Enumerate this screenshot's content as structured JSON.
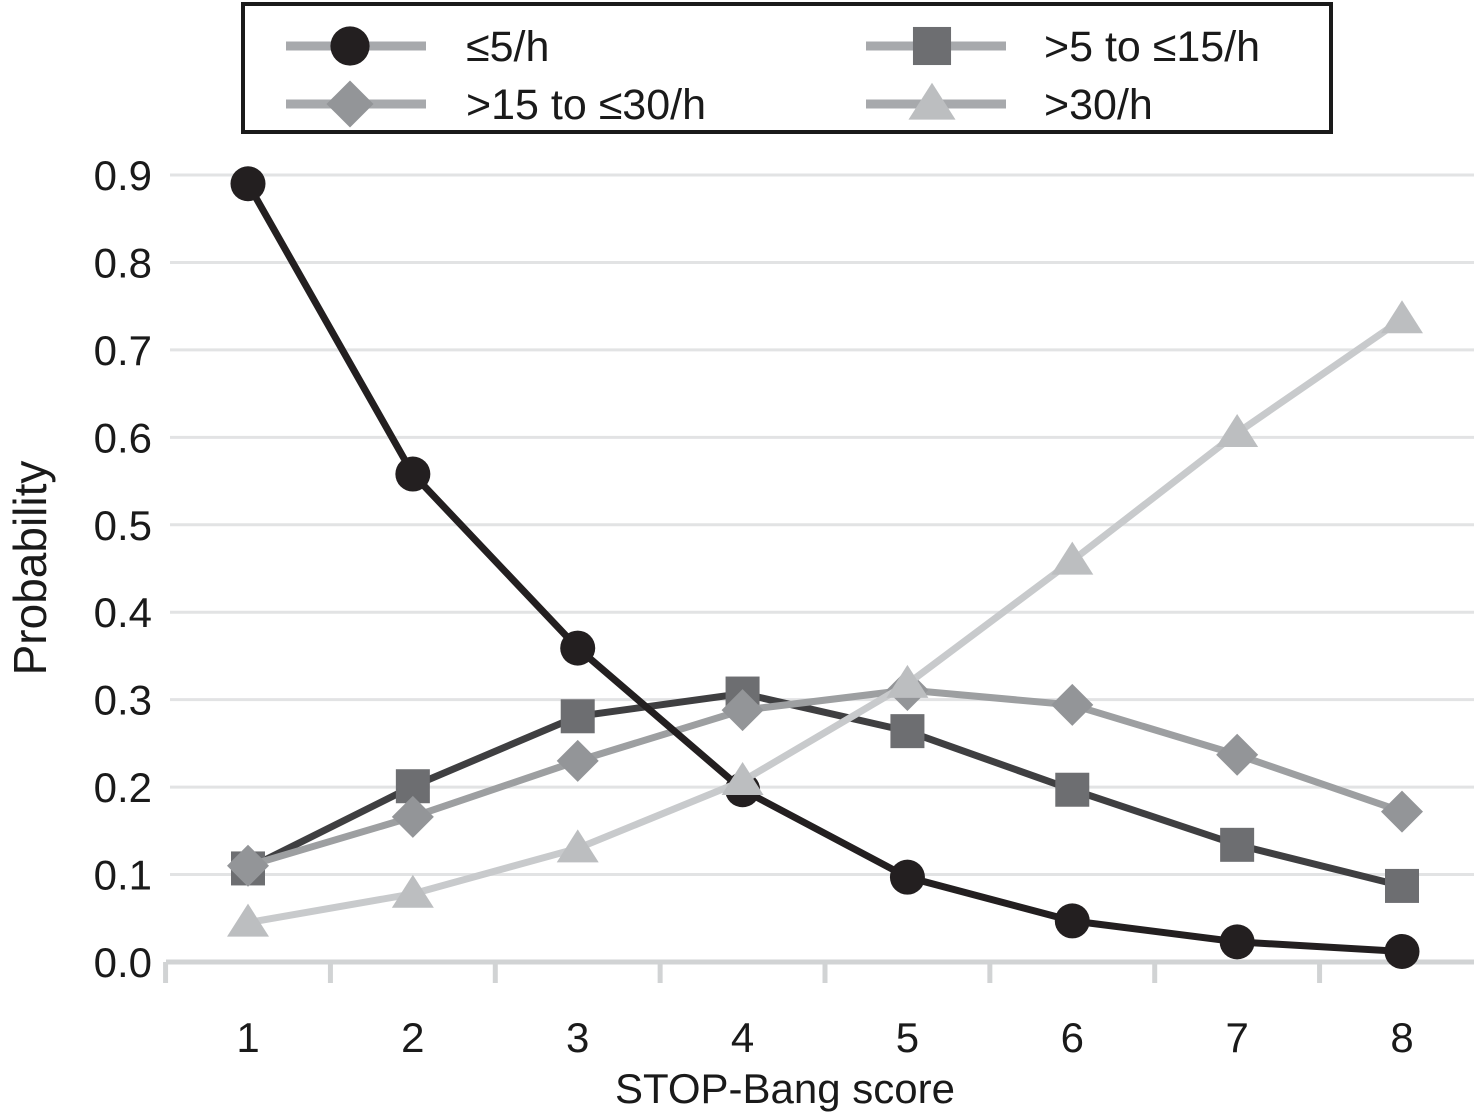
{
  "figure": {
    "background": "#ffffff",
    "text_color": "#1a1a1a"
  },
  "chart_data": {
    "type": "line",
    "title": "",
    "xlabel": "STOP-Bang score",
    "ylabel": "Probability",
    "categories": [
      "1",
      "2",
      "3",
      "4",
      "5",
      "6",
      "7",
      "8"
    ],
    "ylim": [
      0,
      0.9
    ],
    "y_ticks": [
      "0.0",
      "0.1",
      "0.2",
      "0.3",
      "0.4",
      "0.5",
      "0.6",
      "0.7",
      "0.8",
      "0.9"
    ],
    "grid": "horizontal",
    "grid_color": "#e2e3e4",
    "axis_color": "#d1d3d4",
    "legend_position": "top",
    "legend_line_color": "#a7a9ac",
    "legend_border_color": "#1a1a1a",
    "series": [
      {
        "id": "le-5h",
        "name": "≤5/h",
        "marker": "circle",
        "marker_color": "#231f20",
        "line_color": "#231f20",
        "values": [
          0.89,
          0.558,
          0.359,
          0.197,
          0.097,
          0.047,
          0.023,
          0.012
        ]
      },
      {
        "id": "gt5-le15h",
        "name": ">5 to ≤15/h",
        "marker": "square",
        "marker_color": "#6d6e71",
        "line_color": "#3f3f41",
        "values": [
          0.107,
          0.201,
          0.281,
          0.307,
          0.264,
          0.197,
          0.134,
          0.087
        ]
      },
      {
        "id": "gt15-le30h",
        "name": ">15 to ≤30/h",
        "marker": "diamond",
        "marker_color": "#939598",
        "line_color": "#9d9fa1",
        "values": [
          0.11,
          0.166,
          0.23,
          0.288,
          0.311,
          0.294,
          0.237,
          0.172
        ]
      },
      {
        "id": "gt30h",
        "name": ">30/h",
        "marker": "triangle",
        "marker_color": "#bcbec0",
        "line_color": "#c8cacc",
        "values": [
          0.045,
          0.078,
          0.13,
          0.207,
          0.318,
          0.459,
          0.605,
          0.735
        ]
      }
    ]
  }
}
